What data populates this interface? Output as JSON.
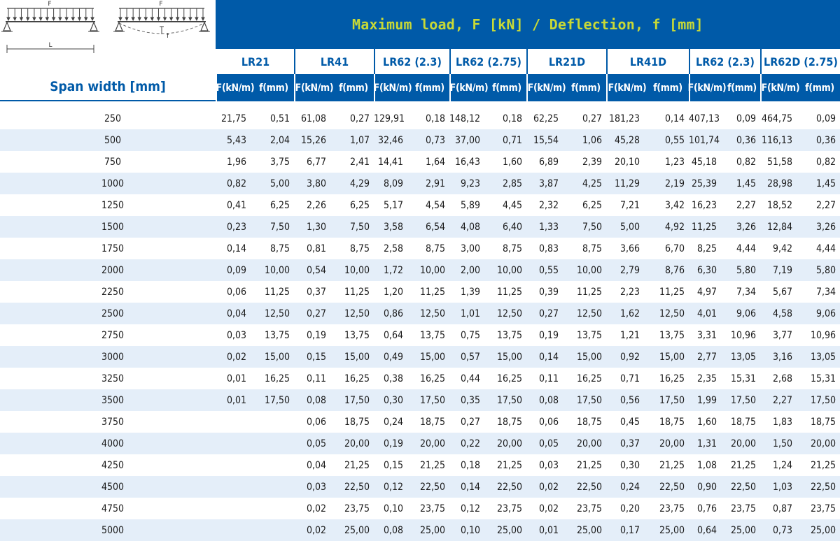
{
  "colors": {
    "brand_blue": "#005aa8",
    "accent_lime": "#c8d936",
    "row_alt": "#e4eef9"
  },
  "diagram": {
    "load_label_1": "F",
    "load_label_2": "F",
    "length_label": "L",
    "deflection_label": "f"
  },
  "banner_title": "Maximum load, F [kN] / Deflection, f [mm]",
  "span_header": "Span width [mm]",
  "products": [
    "LR21",
    "LR41",
    "LR62 (2.3)",
    "LR62 (2.75)",
    "LR21D",
    "LR41D",
    "LR62 (2.3)",
    "LR62D (2.75)"
  ],
  "unit_labels": {
    "load": "F(kN/m)",
    "deflection": "f(mm)"
  },
  "rows": [
    [
      "250",
      "21,75",
      "0,51",
      "61,08",
      "0,27",
      "129,91",
      "0,18",
      "148,12",
      "0,18",
      "62,25",
      "0,27",
      "181,23",
      "0,14",
      "407,13",
      "0,09",
      "464,75",
      "0,09"
    ],
    [
      "500",
      "5,43",
      "2,04",
      "15,26",
      "1,07",
      "32,46",
      "0,73",
      "37,00",
      "0,71",
      "15,54",
      "1,06",
      "45,28",
      "0,55",
      "101,74",
      "0,36",
      "116,13",
      "0,36"
    ],
    [
      "750",
      "1,96",
      "3,75",
      "6,77",
      "2,41",
      "14,41",
      "1,64",
      "16,43",
      "1,60",
      "6,89",
      "2,39",
      "20,10",
      "1,23",
      "45,18",
      "0,82",
      "51,58",
      "0,82"
    ],
    [
      "1000",
      "0,82",
      "5,00",
      "3,80",
      "4,29",
      "8,09",
      "2,91",
      "9,23",
      "2,85",
      "3,87",
      "4,25",
      "11,29",
      "2,19",
      "25,39",
      "1,45",
      "28,98",
      "1,45"
    ],
    [
      "1250",
      "0,41",
      "6,25",
      "2,26",
      "6,25",
      "5,17",
      "4,54",
      "5,89",
      "4,45",
      "2,32",
      "6,25",
      "7,21",
      "3,42",
      "16,23",
      "2,27",
      "18,52",
      "2,27"
    ],
    [
      "1500",
      "0,23",
      "7,50",
      "1,30",
      "7,50",
      "3,58",
      "6,54",
      "4,08",
      "6,40",
      "1,33",
      "7,50",
      "5,00",
      "4,92",
      "11,25",
      "3,26",
      "12,84",
      "3,26"
    ],
    [
      "1750",
      "0,14",
      "8,75",
      "0,81",
      "8,75",
      "2,58",
      "8,75",
      "3,00",
      "8,75",
      "0,83",
      "8,75",
      "3,66",
      "6,70",
      "8,25",
      "4,44",
      "9,42",
      "4,44"
    ],
    [
      "2000",
      "0,09",
      "10,00",
      "0,54",
      "10,00",
      "1,72",
      "10,00",
      "2,00",
      "10,00",
      "0,55",
      "10,00",
      "2,79",
      "8,76",
      "6,30",
      "5,80",
      "7,19",
      "5,80"
    ],
    [
      "2250",
      "0,06",
      "11,25",
      "0,37",
      "11,25",
      "1,20",
      "11,25",
      "1,39",
      "11,25",
      "0,39",
      "11,25",
      "2,23",
      "11,25",
      "4,97",
      "7,34",
      "5,67",
      "7,34"
    ],
    [
      "2500",
      "0,04",
      "12,50",
      "0,27",
      "12,50",
      "0,86",
      "12,50",
      "1,01",
      "12,50",
      "0,27",
      "12,50",
      "1,62",
      "12,50",
      "4,01",
      "9,06",
      "4,58",
      "9,06"
    ],
    [
      "2750",
      "0,03",
      "13,75",
      "0,19",
      "13,75",
      "0,64",
      "13,75",
      "0,75",
      "13,75",
      "0,19",
      "13,75",
      "1,21",
      "13,75",
      "3,31",
      "10,96",
      "3,77",
      "10,96"
    ],
    [
      "3000",
      "0,02",
      "15,00",
      "0,15",
      "15,00",
      "0,49",
      "15,00",
      "0,57",
      "15,00",
      "0,14",
      "15,00",
      "0,92",
      "15,00",
      "2,77",
      "13,05",
      "3,16",
      "13,05"
    ],
    [
      "3250",
      "0,01",
      "16,25",
      "0,11",
      "16,25",
      "0,38",
      "16,25",
      "0,44",
      "16,25",
      "0,11",
      "16,25",
      "0,71",
      "16,25",
      "2,35",
      "15,31",
      "2,68",
      "15,31"
    ],
    [
      "3500",
      "0,01",
      "17,50",
      "0,08",
      "17,50",
      "0,30",
      "17,50",
      "0,35",
      "17,50",
      "0,08",
      "17,50",
      "0,56",
      "17,50",
      "1,99",
      "17,50",
      "2,27",
      "17,50"
    ],
    [
      "3750",
      "",
      "",
      "0,06",
      "18,75",
      "0,24",
      "18,75",
      "0,27",
      "18,75",
      "0,06",
      "18,75",
      "0,45",
      "18,75",
      "1,60",
      "18,75",
      "1,83",
      "18,75"
    ],
    [
      "4000",
      "",
      "",
      "0,05",
      "20,00",
      "0,19",
      "20,00",
      "0,22",
      "20,00",
      "0,05",
      "20,00",
      "0,37",
      "20,00",
      "1,31",
      "20,00",
      "1,50",
      "20,00"
    ],
    [
      "4250",
      "",
      "",
      "0,04",
      "21,25",
      "0,15",
      "21,25",
      "0,18",
      "21,25",
      "0,03",
      "21,25",
      "0,30",
      "21,25",
      "1,08",
      "21,25",
      "1,24",
      "21,25"
    ],
    [
      "4500",
      "",
      "",
      "0,03",
      "22,50",
      "0,12",
      "22,50",
      "0,14",
      "22,50",
      "0,02",
      "22,50",
      "0,24",
      "22,50",
      "0,90",
      "22,50",
      "1,03",
      "22,50"
    ],
    [
      "4750",
      "",
      "",
      "0,02",
      "23,75",
      "0,10",
      "23,75",
      "0,12",
      "23,75",
      "0,02",
      "23,75",
      "0,20",
      "23,75",
      "0,76",
      "23,75",
      "0,87",
      "23,75"
    ],
    [
      "5000",
      "",
      "",
      "0,02",
      "25,00",
      "0,08",
      "25,00",
      "0,10",
      "25,00",
      "0,01",
      "25,00",
      "0,17",
      "25,00",
      "0,64",
      "25,00",
      "0,73",
      "25,00"
    ]
  ]
}
